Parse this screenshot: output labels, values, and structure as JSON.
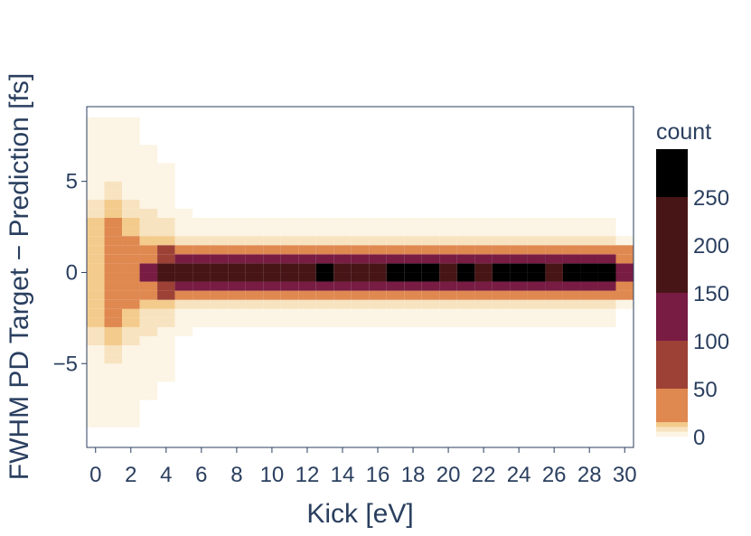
{
  "chart_data": {
    "type": "heatmap",
    "title": "",
    "xlabel": "Kick [eV]",
    "ylabel": "FWHM PD Target − Prediction [fs]",
    "xlim": [
      -0.5,
      30.5
    ],
    "ylim": [
      -9.6,
      9.1
    ],
    "x_ticks": [
      0,
      2,
      4,
      6,
      8,
      10,
      12,
      14,
      16,
      18,
      20,
      22,
      24,
      26,
      28,
      30
    ],
    "x_tick_labels": [
      "0",
      "2",
      "4",
      "6",
      "8",
      "10",
      "12",
      "14",
      "16",
      "18",
      "20",
      "22",
      "24",
      "26",
      "28",
      "30"
    ],
    "y_ticks": [
      -5,
      0,
      5
    ],
    "y_tick_labels": [
      "−5",
      "0",
      "5"
    ],
    "x_bin_width": 1,
    "y_bin_width": 0.5,
    "colorbar": {
      "title": "count",
      "ticks": [
        0,
        50,
        100,
        150,
        200,
        250
      ],
      "tick_labels": [
        "0",
        "50",
        "100",
        "150",
        "200",
        "250"
      ],
      "range": [
        0,
        300
      ],
      "bands": [
        {
          "from": 0,
          "to": 5,
          "color": "#fcf4e4"
        },
        {
          "from": 5,
          "to": 10,
          "color": "#f8e3c0"
        },
        {
          "from": 10,
          "to": 15,
          "color": "#f3cb8c"
        },
        {
          "from": 15,
          "to": 50,
          "color": "#df8850"
        },
        {
          "from": 50,
          "to": 100,
          "color": "#9d4136"
        },
        {
          "from": 100,
          "to": 150,
          "color": "#781c44"
        },
        {
          "from": 150,
          "to": 250,
          "color": "#471516"
        },
        {
          "from": 250,
          "to": 300,
          "color": "#000000"
        }
      ]
    },
    "series": [
      {
        "x": 0,
        "width": [
          3,
          4,
          5,
          6,
          7,
          8.5
        ],
        "counts": [
          10,
          6,
          4,
          3,
          2,
          1
        ],
        "peak": 12
      },
      {
        "x": 1,
        "width": [
          3,
          4,
          5,
          6,
          7,
          8.5
        ],
        "counts": [
          25,
          10,
          6,
          4,
          2,
          1
        ],
        "peak": 30
      },
      {
        "x": 2,
        "width": [
          2,
          3,
          4,
          6,
          7,
          8.5
        ],
        "counts": [
          25,
          12,
          6,
          3,
          2,
          1
        ],
        "peak": 35
      },
      {
        "x": 3,
        "width": [
          0.7,
          1.4,
          2.2,
          3.5,
          5,
          7
        ],
        "counts": [
          110,
          45,
          12,
          6,
          3,
          1
        ],
        "peak": 140
      },
      {
        "x": 4,
        "width": [
          0.7,
          1.4,
          2.2,
          3.2,
          4.5,
          6
        ],
        "counts": [
          120,
          60,
          12,
          6,
          3,
          1
        ],
        "peak": 150
      },
      {
        "x": 5,
        "width": [
          0.3,
          0.8,
          1.3,
          2.0,
          2.8,
          3.5
        ],
        "counts": [
          200,
          120,
          35,
          8,
          3,
          1
        ],
        "peak": 210
      },
      {
        "x": 6,
        "width": [
          0.3,
          0.8,
          1.3,
          2.0,
          2.8
        ],
        "counts": [
          200,
          120,
          35,
          8,
          3
        ],
        "peak": 210
      },
      {
        "x": 7,
        "width": [
          0.3,
          0.8,
          1.3,
          2.0,
          2.8
        ],
        "counts": [
          200,
          120,
          35,
          8,
          3
        ],
        "peak": 210
      },
      {
        "x": 8,
        "width": [
          0.3,
          0.8,
          1.3,
          2.0,
          2.8
        ],
        "counts": [
          200,
          120,
          35,
          8,
          3
        ],
        "peak": 210
      },
      {
        "x": 9,
        "width": [
          0.3,
          0.8,
          1.3,
          2.0,
          2.8
        ],
        "counts": [
          200,
          120,
          35,
          8,
          3
        ],
        "peak": 210
      },
      {
        "x": 10,
        "width": [
          0.3,
          0.8,
          1.3,
          2.0,
          2.8
        ],
        "counts": [
          200,
          120,
          35,
          8,
          3
        ],
        "peak": 210
      },
      {
        "x": 11,
        "width": [
          0.3,
          0.8,
          1.3,
          2.0,
          2.8
        ],
        "counts": [
          200,
          120,
          35,
          8,
          3
        ],
        "peak": 210
      },
      {
        "x": 12,
        "width": [
          0.3,
          0.8,
          1.3,
          2.0,
          2.8
        ],
        "counts": [
          200,
          120,
          35,
          8,
          3
        ],
        "peak": 210
      },
      {
        "x": 13,
        "width": [
          0.3,
          0.8,
          1.3,
          2.0,
          2.8
        ],
        "counts": [
          210,
          120,
          35,
          8,
          3
        ],
        "peak": 260
      },
      {
        "x": 14,
        "width": [
          0.3,
          0.8,
          1.3,
          2.0,
          2.8
        ],
        "counts": [
          200,
          120,
          35,
          8,
          3
        ],
        "peak": 210
      },
      {
        "x": 15,
        "width": [
          0.3,
          0.8,
          1.3,
          2.0,
          2.8
        ],
        "counts": [
          200,
          120,
          35,
          8,
          3
        ],
        "peak": 210
      },
      {
        "x": 16,
        "width": [
          0.3,
          0.8,
          1.3,
          2.0,
          2.8
        ],
        "counts": [
          200,
          120,
          35,
          8,
          3
        ],
        "peak": 210
      },
      {
        "x": 17,
        "width": [
          0.3,
          0.8,
          1.3,
          2.0,
          2.8
        ],
        "counts": [
          210,
          120,
          35,
          8,
          3
        ],
        "peak": 270
      },
      {
        "x": 18,
        "width": [
          0.3,
          0.8,
          1.3,
          2.0,
          2.8
        ],
        "counts": [
          210,
          120,
          35,
          8,
          3
        ],
        "peak": 270
      },
      {
        "x": 19,
        "width": [
          0.3,
          0.8,
          1.3,
          2.0,
          2.8
        ],
        "counts": [
          210,
          120,
          35,
          8,
          3
        ],
        "peak": 260
      },
      {
        "x": 20,
        "width": [
          0.3,
          0.8,
          1.3,
          2.0,
          2.8
        ],
        "counts": [
          200,
          120,
          35,
          8,
          3
        ],
        "peak": 210
      },
      {
        "x": 21,
        "width": [
          0.3,
          0.8,
          1.3,
          2.0,
          2.8
        ],
        "counts": [
          210,
          120,
          35,
          8,
          3
        ],
        "peak": 260
      },
      {
        "x": 22,
        "width": [
          0.3,
          0.8,
          1.3,
          2.0,
          2.8
        ],
        "counts": [
          200,
          120,
          35,
          8,
          3
        ],
        "peak": 210
      },
      {
        "x": 23,
        "width": [
          0.3,
          0.8,
          1.3,
          2.0,
          2.8
        ],
        "counts": [
          210,
          120,
          35,
          8,
          3
        ],
        "peak": 260
      },
      {
        "x": 24,
        "width": [
          0.3,
          0.8,
          1.3,
          2.0,
          2.8
        ],
        "counts": [
          210,
          120,
          35,
          8,
          3
        ],
        "peak": 290
      },
      {
        "x": 25,
        "width": [
          0.3,
          0.8,
          1.3,
          2.0,
          2.8
        ],
        "counts": [
          210,
          120,
          35,
          8,
          3
        ],
        "peak": 290
      },
      {
        "x": 26,
        "width": [
          0.3,
          0.8,
          1.3,
          2.0,
          2.8
        ],
        "counts": [
          200,
          120,
          35,
          8,
          3
        ],
        "peak": 210
      },
      {
        "x": 27,
        "width": [
          0.3,
          0.8,
          1.3,
          2.0,
          2.8
        ],
        "counts": [
          210,
          120,
          35,
          8,
          3
        ],
        "peak": 260
      },
      {
        "x": 28,
        "width": [
          0.3,
          0.8,
          1.3,
          2.0,
          2.8
        ],
        "counts": [
          210,
          120,
          35,
          8,
          3
        ],
        "peak": 260
      },
      {
        "x": 29,
        "width": [
          0.3,
          0.8,
          1.3,
          2.0,
          2.8
        ],
        "counts": [
          210,
          120,
          35,
          8,
          3
        ],
        "peak": 290
      },
      {
        "x": 30,
        "width": [
          0.3,
          0.8,
          1.3,
          2.0
        ],
        "counts": [
          100,
          40,
          15,
          4
        ],
        "peak": 100
      }
    ]
  }
}
